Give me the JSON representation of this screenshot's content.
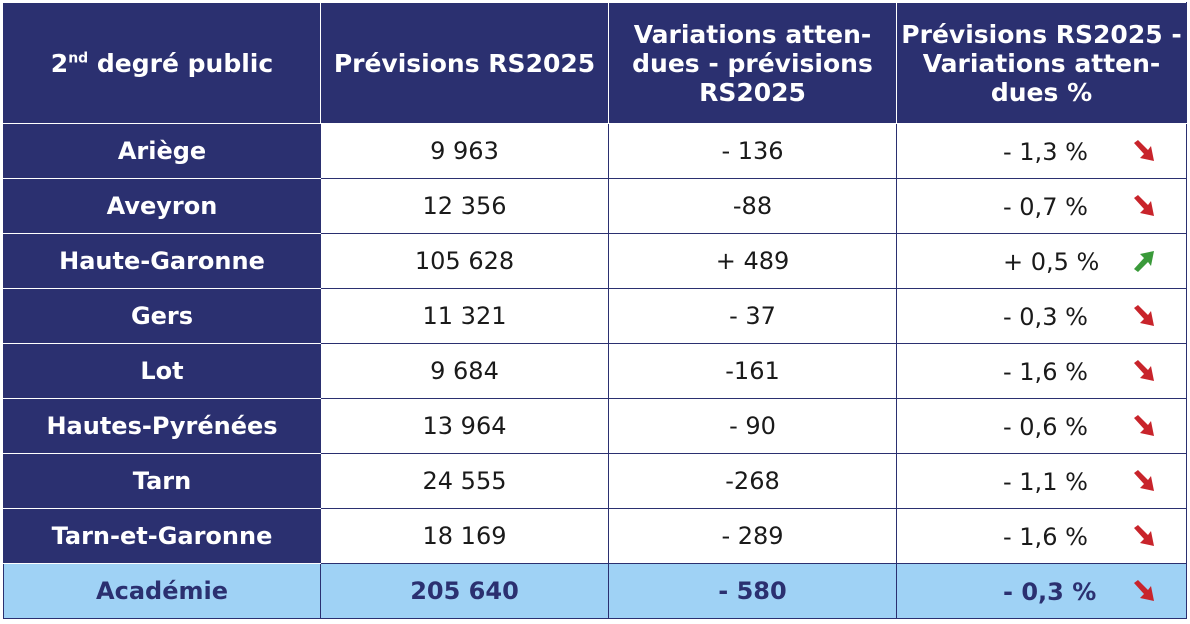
{
  "header": {
    "col1_main": "2",
    "col1_sup": "nd",
    "col1_rest": " degré public",
    "col2": "Prévisions RS2025",
    "col3_l1": "Variations atten-",
    "col3_l2": "dues - prévisions",
    "col3_l3": "RS2025",
    "col4_l1": "Prévisions RS2025 -",
    "col4_l2": "Variations atten-",
    "col4_l3": "dues %"
  },
  "rows": [
    {
      "dept": "Ariège",
      "prev": "9 963",
      "var": "- 136",
      "pct": "- 1,3 %",
      "trend": "down"
    },
    {
      "dept": "Aveyron",
      "prev": "12 356",
      "var": "-88",
      "pct": "- 0,7 %",
      "trend": "down"
    },
    {
      "dept": "Haute-Garonne",
      "prev": "105 628",
      "var": "+ 489",
      "pct": "+ 0,5 %",
      "trend": "up"
    },
    {
      "dept": "Gers",
      "prev": "11 321",
      "var": "- 37",
      "pct": "- 0,3 %",
      "trend": "down"
    },
    {
      "dept": "Lot",
      "prev": "9 684",
      "var": "-161",
      "pct": "- 1,6 %",
      "trend": "down"
    },
    {
      "dept": "Hautes-Pyrénées",
      "prev": "13 964",
      "var": "- 90",
      "pct": "- 0,6 %",
      "trend": "down"
    },
    {
      "dept": "Tarn",
      "prev": "24 555",
      "var": "-268",
      "pct": "- 1,1 %",
      "trend": "down"
    },
    {
      "dept": "Tarn-et-Garonne",
      "prev": "18 169",
      "var": "- 289",
      "pct": "- 1,6 %",
      "trend": "down"
    }
  ],
  "total": {
    "dept": "Académie",
    "prev": "205 640",
    "var": "- 580",
    "pct": "- 0,3 %",
    "trend": "down"
  },
  "colors": {
    "header_bg": "#2b3070",
    "total_bg": "#9fd2f5",
    "down_arrow": "#c8242b",
    "up_arrow": "#3a9a3a"
  },
  "icons": {
    "down": "arrow-down-right-icon",
    "up": "arrow-up-right-icon"
  }
}
